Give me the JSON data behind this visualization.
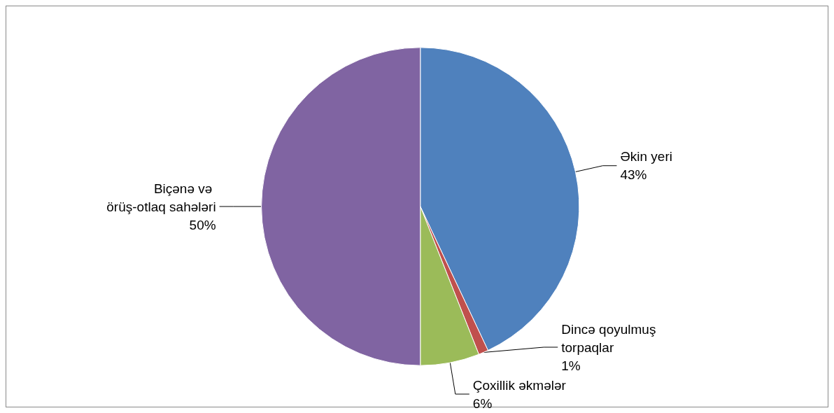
{
  "chart_data": {
    "type": "pie",
    "categories": [
      "Əkin yeri",
      "Dincə qoyulmuş torpaqlar",
      "Çoxillik əkmələr",
      "Biçənə və örüş-otlaq sahələri"
    ],
    "values": [
      43,
      1,
      6,
      50
    ],
    "value_labels": [
      "43%",
      "1%",
      "6%",
      "50%"
    ],
    "colors": [
      "#4f81bd",
      "#c0504d",
      "#9bbb59",
      "#8064a2"
    ],
    "legend": false
  }
}
